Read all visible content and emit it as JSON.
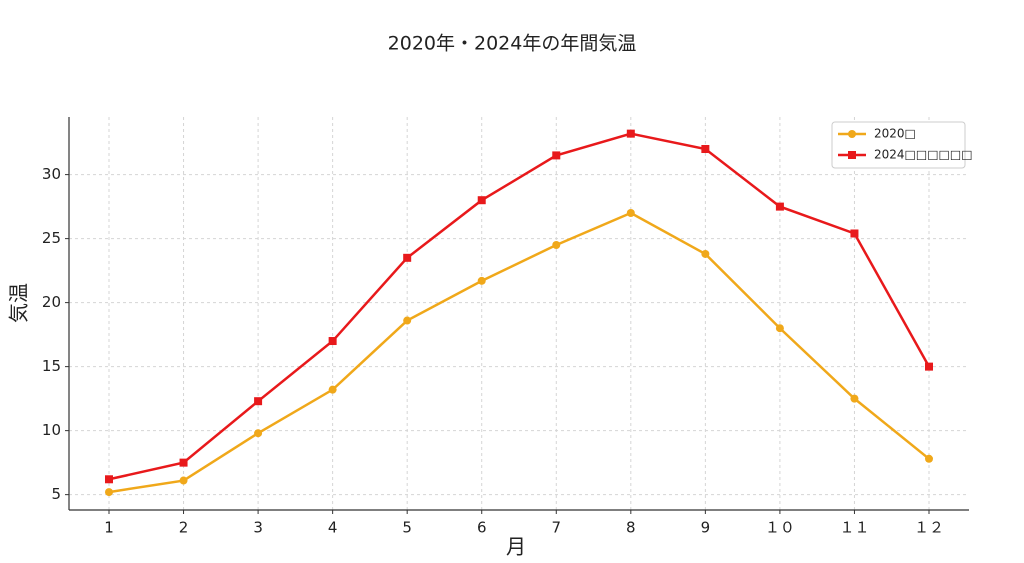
{
  "chart_data": {
    "type": "line",
    "title": "2020年・2024年の年間気温",
    "x_label": "月",
    "y_label": "気温",
    "categories": [
      "1",
      "2",
      "3",
      "4",
      "5",
      "6",
      "7",
      "8",
      "9",
      "１０",
      "１１",
      "１２"
    ],
    "series": [
      {
        "name": "2020□",
        "color": "#f0a81a",
        "marker": "circle",
        "values": [
          5.2,
          6.1,
          9.8,
          13.2,
          18.6,
          21.7,
          24.5,
          27.0,
          23.8,
          18.0,
          12.5,
          7.8
        ]
      },
      {
        "name": "2024□□□□□□",
        "color": "#e8191b",
        "marker": "square",
        "values": [
          6.2,
          7.5,
          12.3,
          17.0,
          23.5,
          28.0,
          31.5,
          33.2,
          32.0,
          27.5,
          25.4,
          15.0
        ]
      }
    ],
    "ylim": [
      3.8,
      34.5
    ],
    "yticks": [
      5,
      10,
      15,
      20,
      25,
      30
    ],
    "grid": true,
    "legend": "upper right"
  }
}
